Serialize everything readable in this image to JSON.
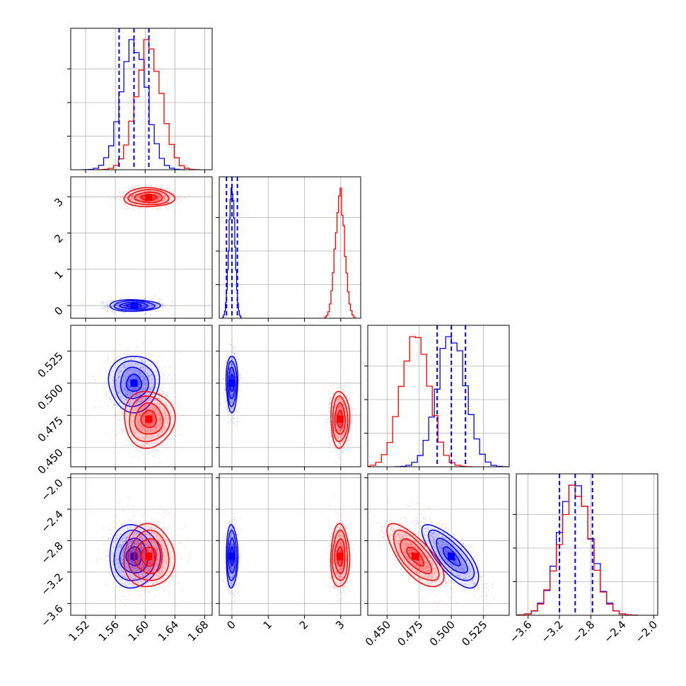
{
  "chart_data": {
    "type": "corner",
    "grid": true,
    "colors": {
      "blue": "#0000ff",
      "red": "#ff0000"
    },
    "series": [
      {
        "color": "#0000ff",
        "means": [
          1.585,
          0.0,
          0.5,
          -3.0
        ],
        "stds": [
          0.017,
          0.08,
          0.011,
          0.2
        ],
        "corr_p3_p4": -0.75
      },
      {
        "color": "#ff0000",
        "means": [
          1.605,
          2.98,
          0.472,
          -3.0
        ],
        "stds": [
          0.017,
          0.13,
          0.011,
          0.2
        ],
        "corr_p3_p4": -0.72
      }
    ],
    "quantile_lines": {
      "color": "#0000ff",
      "p1": [
        1.565,
        1.585,
        1.605
      ],
      "p2": [
        -0.15,
        0.0,
        0.15
      ],
      "p3": [
        0.489,
        0.5,
        0.511
      ],
      "p4": [
        -3.2,
        -3.0,
        -2.78
      ]
    },
    "ranges": {
      "p1": [
        1.5,
        1.69
      ],
      "p2": [
        -0.35,
        3.55
      ],
      "p3": [
        0.435,
        0.545
      ],
      "p4": [
        -3.75,
        -1.95
      ]
    },
    "ticks": {
      "p1": [
        "1.52",
        "1.56",
        "1.60",
        "1.64",
        "1.68"
      ],
      "p2": [
        "0",
        "1",
        "2",
        "3"
      ],
      "p3": [
        "0.450",
        "0.475",
        "0.500",
        "0.525"
      ],
      "p4": [
        "−3.6",
        "−3.2",
        "−2.8",
        "−2.4",
        "−2.0"
      ]
    },
    "tick_values": {
      "p1": [
        1.52,
        1.56,
        1.6,
        1.64,
        1.68
      ],
      "p2": [
        0,
        1,
        2,
        3
      ],
      "p3": [
        0.45,
        0.475,
        0.5,
        0.525
      ],
      "p4": [
        -3.6,
        -3.2,
        -2.8,
        -2.4,
        -2.0
      ]
    }
  }
}
